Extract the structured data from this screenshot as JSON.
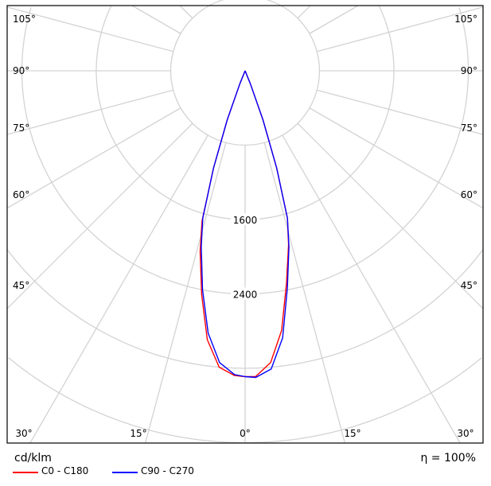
{
  "chart_data": {
    "type": "polar",
    "unit_label": "cd/klm",
    "efficiency_label": "η = 100%",
    "radial_ticks": [
      800,
      1600,
      2400,
      3200,
      4000,
      4800
    ],
    "radial_tick_labels": [
      "1600",
      "2400"
    ],
    "angle_labels_left": [
      "105°",
      "90°",
      "75°",
      "60°",
      "45°"
    ],
    "angle_labels_right": [
      "105°",
      "90°",
      "75°",
      "60°",
      "45°"
    ],
    "angle_labels_bottom": [
      "30°",
      "15°",
      "0°",
      "15°",
      "30°"
    ],
    "series": [
      {
        "name": "C0 - C180",
        "color": "#ff0000",
        "angles": [
          -25,
          -22,
          -20,
          -18,
          -16,
          -14,
          -11,
          -8,
          -5,
          -2,
          0,
          2,
          5,
          8,
          11,
          14,
          16,
          18,
          20,
          22,
          25
        ],
        "values": [
          0,
          150,
          560,
          1100,
          1680,
          2000,
          2450,
          2920,
          3200,
          3280,
          3290,
          3290,
          3150,
          2820,
          2330,
          1930,
          1650,
          1100,
          560,
          150,
          0
        ]
      },
      {
        "name": "C90 - C270",
        "color": "#0000ff",
        "angles": [
          -25,
          -22,
          -20,
          -18,
          -16,
          -14,
          -11,
          -8,
          -5,
          -2,
          0,
          2,
          5,
          8,
          11,
          14,
          16,
          18,
          20,
          22,
          25
        ],
        "values": [
          0,
          150,
          560,
          1100,
          1650,
          1950,
          2400,
          2850,
          3150,
          3270,
          3290,
          3300,
          3220,
          2900,
          2380,
          1950,
          1650,
          1100,
          560,
          150,
          0
        ]
      }
    ]
  }
}
